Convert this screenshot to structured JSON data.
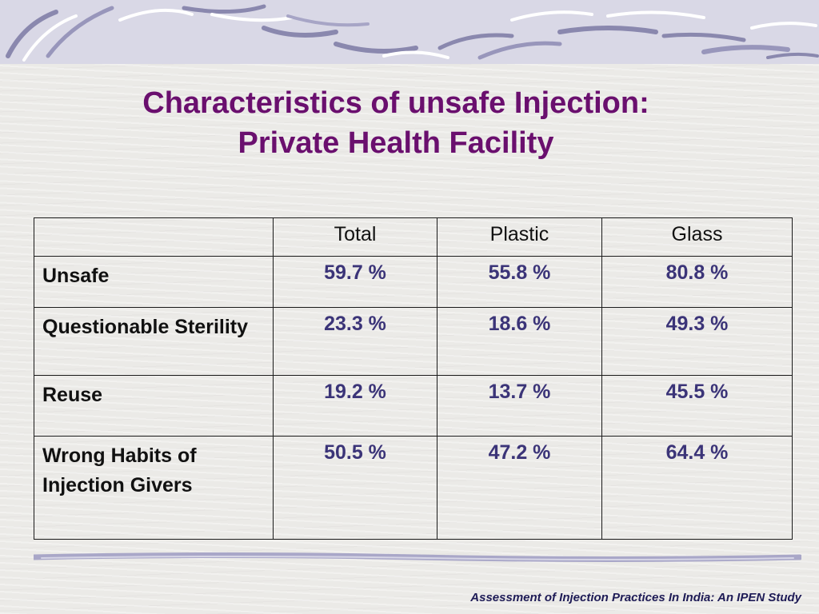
{
  "slide": {
    "title_line1": "Characteristics of unsafe Injection:",
    "title_line2": "Private Health Facility",
    "footer": "Assessment of Injection Practices In India: An IPEN Study"
  },
  "table": {
    "headers": [
      "",
      "Total",
      "Plastic",
      "Glass"
    ],
    "rows": [
      {
        "label": "Unsafe",
        "total": "59.7 %",
        "plastic": "55.8 %",
        "glass": "80.8 %"
      },
      {
        "label": "Questionable Sterility",
        "total": "23.3 %",
        "plastic": "18.6 %",
        "glass": "49.3 %"
      },
      {
        "label": "Reuse",
        "total": "19.2 %",
        "plastic": "13.7 %",
        "glass": "45.5 %"
      },
      {
        "label": "Wrong Habits of Injection Givers",
        "total": "50.5 %",
        "plastic": "47.2 %",
        "glass": "64.4 %"
      }
    ]
  },
  "colors": {
    "title": "#6a0f6e",
    "values": "#3b3478",
    "footer": "#1e1b56",
    "band": "#d9d8e6"
  }
}
